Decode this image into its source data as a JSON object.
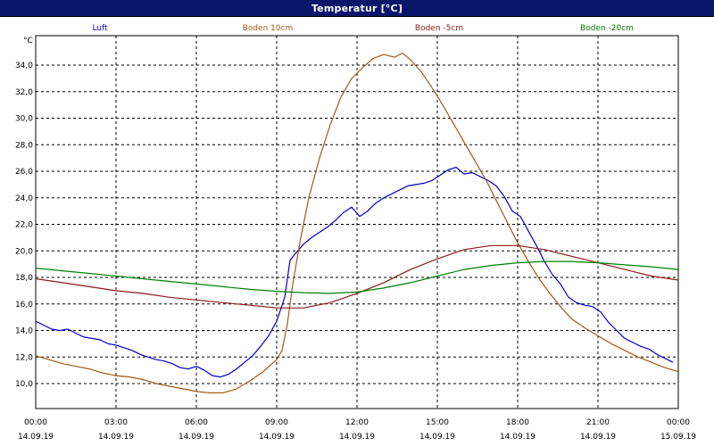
{
  "window": {
    "title": "Temperatur [°C]"
  },
  "chart_data": {
    "type": "line",
    "title": "Temperatur [°C]",
    "ylabel": "°C",
    "ylim": [
      9,
      36
    ],
    "yticks": [
      "10,0",
      "12,0",
      "14,0",
      "16,0",
      "18,0",
      "20,0",
      "22,0",
      "24,0",
      "26,0",
      "28,0",
      "30,0",
      "32,0",
      "34,0"
    ],
    "ytick_values": [
      10,
      12,
      14,
      16,
      18,
      20,
      22,
      24,
      26,
      28,
      30,
      32,
      34
    ],
    "xlim": [
      0,
      24
    ],
    "xticks": [
      {
        "time": "00:00",
        "date": "14.09.19"
      },
      {
        "time": "03:00",
        "date": "14.09.19"
      },
      {
        "time": "06:00",
        "date": "14.09.19"
      },
      {
        "time": "09:00",
        "date": "14.09.19"
      },
      {
        "time": "12:00",
        "date": "14.09.19"
      },
      {
        "time": "15:00",
        "date": "14.09.19"
      },
      {
        "time": "18:00",
        "date": "14.09.19"
      },
      {
        "time": "21:00",
        "date": "14.09.19"
      },
      {
        "time": "00:00",
        "date": "15.09.19"
      }
    ],
    "xtick_hours": [
      0,
      3,
      6,
      9,
      12,
      15,
      18,
      21,
      24
    ],
    "grid": true,
    "series": [
      {
        "name": "Luft",
        "color": "#0000cc",
        "x": [
          0,
          0.3,
          0.6,
          0.9,
          1.2,
          1.5,
          1.8,
          2.1,
          2.4,
          2.7,
          3.0,
          3.3,
          3.6,
          3.9,
          4.2,
          4.5,
          4.8,
          5.1,
          5.4,
          5.7,
          6.0,
          6.3,
          6.6,
          6.9,
          7.2,
          7.5,
          7.8,
          8.1,
          8.4,
          8.7,
          9.0,
          9.3,
          9.5,
          9.7,
          10.0,
          10.3,
          10.6,
          10.9,
          11.2,
          11.5,
          11.8,
          12.1,
          12.4,
          12.7,
          13.0,
          13.3,
          13.6,
          13.9,
          14.2,
          14.5,
          14.8,
          15.1,
          15.4,
          15.7,
          16.0,
          16.3,
          16.6,
          16.9,
          17.2,
          17.5,
          17.8,
          18.1,
          18.4,
          18.7,
          19.0,
          19.3,
          19.6,
          19.9,
          20.2,
          20.5,
          20.8,
          21.1,
          21.4,
          21.7,
          22.0,
          22.3,
          22.6,
          22.9,
          23.2,
          23.5,
          23.8
        ],
        "values": [
          14.7,
          14.4,
          14.1,
          14.0,
          14.1,
          13.8,
          13.5,
          13.4,
          13.3,
          13.0,
          12.9,
          12.7,
          12.5,
          12.2,
          12.0,
          11.8,
          11.7,
          11.5,
          11.2,
          11.1,
          11.3,
          11.0,
          10.6,
          10.5,
          10.7,
          11.1,
          11.6,
          12.1,
          12.8,
          13.6,
          14.7,
          16.5,
          19.3,
          19.8,
          20.5,
          21.0,
          21.4,
          21.8,
          22.3,
          22.9,
          23.3,
          22.6,
          23.0,
          23.6,
          24.0,
          24.3,
          24.6,
          24.9,
          25.0,
          25.1,
          25.3,
          25.7,
          26.1,
          26.3,
          25.8,
          25.9,
          25.6,
          25.3,
          24.9,
          24.1,
          23.0,
          22.6,
          21.5,
          20.4,
          19.2,
          18.2,
          17.5,
          16.5,
          16.1,
          15.9,
          15.8,
          15.4,
          14.6,
          14.0,
          13.4,
          13.1,
          12.8,
          12.6,
          12.2,
          11.9,
          11.6
        ]
      },
      {
        "name": "Boden 10cm",
        "color": "#a05a14",
        "x": [
          0,
          0.5,
          1.0,
          1.5,
          2.0,
          2.5,
          3.0,
          3.5,
          4.0,
          4.5,
          5.0,
          5.5,
          6.0,
          6.5,
          7.0,
          7.5,
          8.0,
          8.5,
          9.0,
          9.2,
          9.4,
          9.6,
          9.9,
          10.2,
          10.6,
          11.0,
          11.4,
          11.8,
          12.2,
          12.6,
          13.0,
          13.4,
          13.7,
          14.0,
          14.4,
          14.8,
          15.2,
          15.6,
          16.0,
          16.4,
          16.8,
          17.2,
          17.6,
          18.0,
          18.4,
          18.8,
          19.2,
          19.6,
          20.0,
          20.5,
          21.0,
          21.5,
          22.0,
          22.5,
          23.0,
          23.5,
          24.0
        ],
        "values": [
          12.1,
          11.8,
          11.5,
          11.3,
          11.1,
          10.8,
          10.6,
          10.5,
          10.3,
          10.0,
          9.8,
          9.6,
          9.4,
          9.3,
          9.3,
          9.6,
          10.2,
          10.9,
          11.8,
          12.5,
          14.5,
          17.5,
          21.0,
          24.0,
          27.0,
          29.5,
          31.6,
          33.0,
          33.8,
          34.5,
          34.8,
          34.6,
          34.9,
          34.4,
          33.5,
          32.3,
          31.0,
          29.6,
          28.2,
          26.8,
          25.4,
          23.8,
          22.2,
          20.6,
          19.2,
          17.9,
          16.8,
          15.8,
          14.9,
          14.2,
          13.6,
          13.0,
          12.5,
          12.0,
          11.6,
          11.2,
          10.9
        ]
      },
      {
        "name": "Boden -5cm",
        "color": "#8b1a1a",
        "x": [
          0,
          1,
          2,
          3,
          4,
          5,
          6,
          7,
          8,
          9,
          10,
          11,
          12,
          13,
          14,
          15,
          16,
          17,
          18,
          19,
          20,
          21,
          22,
          23,
          24
        ],
        "values": [
          17.9,
          17.6,
          17.3,
          17.0,
          16.8,
          16.5,
          16.3,
          16.1,
          15.9,
          15.7,
          15.7,
          16.1,
          16.8,
          17.6,
          18.6,
          19.4,
          20.1,
          20.4,
          20.4,
          20.1,
          19.6,
          19.1,
          18.6,
          18.1,
          17.8
        ]
      },
      {
        "name": "Boden -20cm",
        "color": "#008000",
        "x": [
          0,
          1,
          2,
          3,
          4,
          5,
          6,
          7,
          8,
          9,
          10,
          11,
          12,
          13,
          14,
          15,
          16,
          17,
          18,
          19,
          20,
          21,
          22,
          23,
          24
        ],
        "values": [
          18.7,
          18.5,
          18.3,
          18.1,
          17.9,
          17.7,
          17.5,
          17.3,
          17.1,
          16.95,
          16.85,
          16.8,
          16.9,
          17.2,
          17.6,
          18.1,
          18.6,
          18.9,
          19.1,
          19.2,
          19.2,
          19.1,
          18.95,
          18.8,
          18.6
        ]
      }
    ]
  }
}
